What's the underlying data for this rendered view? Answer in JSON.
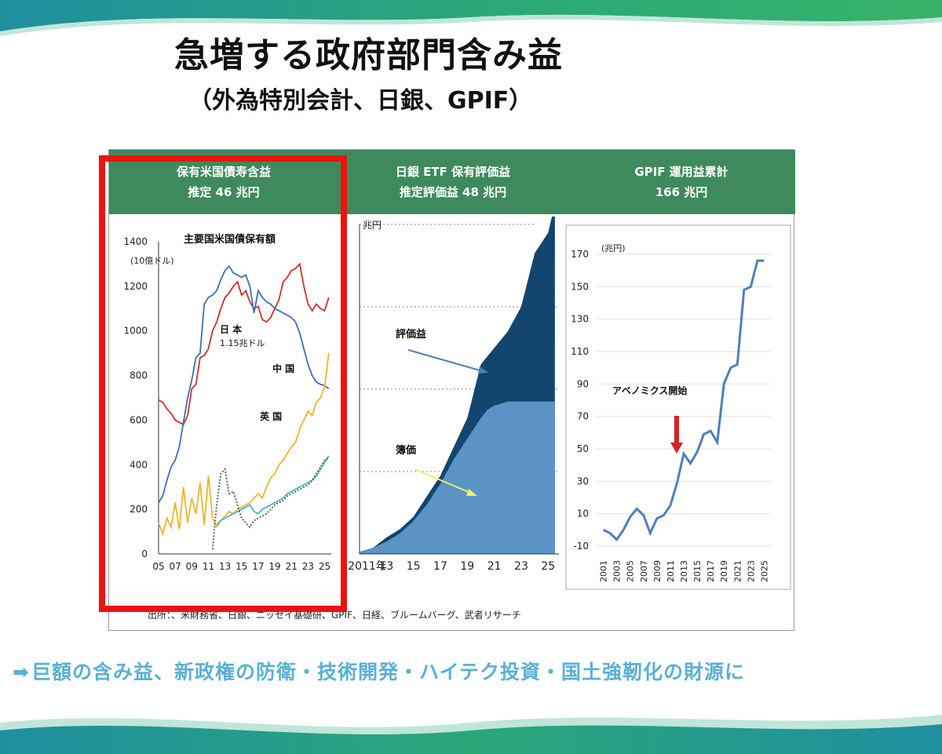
{
  "slide": {
    "title": "急増する政府部門含み益",
    "subtitle": "（外為特別会計、日銀、GPIF）",
    "source": "出所：、米財務省、日銀、ニッセイ基礎研、GPIF、日経、ブルームバーグ、武者リサーチ",
    "note_arrow": "➡",
    "note": "巨額の含み益、新政権の防衛・技術開発・ハイテク投資・国土強靭化の財源に",
    "colors": {
      "header_green": "#3f8a5c",
      "highlight_red": "#ee1111",
      "note_blue": "#5ab0d6",
      "wave_green": "#2aa779",
      "wave_teal": "#1f8fa0"
    }
  },
  "panels": [
    {
      "header_line1": "保有米国債寿含益",
      "header_line2": "推定 46 兆円"
    },
    {
      "header_line1": "日銀 ETF 保有評価益",
      "header_line2": "推定評価益 48 兆円"
    },
    {
      "header_line1": "GPIF 運用益累計",
      "header_line2": "166 兆円"
    }
  ],
  "chart_data": [
    {
      "type": "line",
      "title": "主要国米国債保有額",
      "ylabel": "(10億ドル)",
      "ylim": [
        0,
        1400
      ],
      "yticks": [
        0,
        200,
        400,
        600,
        800,
        1000,
        1200,
        1400
      ],
      "xlim": [
        2005,
        2025.8
      ],
      "xtick_labels": [
        "05",
        "07",
        "09",
        "11",
        "13",
        "15",
        "17",
        "19",
        "21",
        "23",
        "25"
      ],
      "annotations": [
        "日 本",
        "1.15兆ドル",
        "中 国",
        "英 国"
      ],
      "series": [
        {
          "name": "日 本",
          "color": "#d42f2f",
          "x": [
            2005,
            2005.5,
            2006,
            2006.5,
            2007,
            2007.5,
            2008,
            2008.5,
            2009,
            2009.5,
            2010,
            2010.5,
            2011,
            2011.5,
            2012,
            2012.5,
            2013,
            2013.5,
            2014,
            2014.5,
            2015,
            2015.5,
            2016,
            2016.5,
            2017,
            2017.5,
            2018,
            2018.5,
            2019,
            2019.5,
            2020,
            2020.5,
            2021,
            2021.5,
            2022,
            2022.5,
            2023,
            2023.5,
            2024,
            2024.5,
            2025,
            2025.5
          ],
          "y": [
            690,
            680,
            650,
            630,
            600,
            590,
            580,
            620,
            740,
            760,
            880,
            890,
            920,
            1000,
            1040,
            1100,
            1150,
            1170,
            1200,
            1220,
            1160,
            1180,
            1130,
            1100,
            1110,
            1050,
            1040,
            1060,
            1100,
            1140,
            1220,
            1240,
            1270,
            1280,
            1300,
            1200,
            1120,
            1090,
            1120,
            1100,
            1090,
            1150
          ]
        },
        {
          "name": "中 国",
          "color": "#3d6fb6",
          "x": [
            2005,
            2005.5,
            2006,
            2006.5,
            2007,
            2007.5,
            2008,
            2008.5,
            2009,
            2009.5,
            2010,
            2010.5,
            2011,
            2011.5,
            2012,
            2012.5,
            2013,
            2013.5,
            2014,
            2014.5,
            2015,
            2015.5,
            2016,
            2016.5,
            2017,
            2017.5,
            2018,
            2018.5,
            2019,
            2019.5,
            2020,
            2020.5,
            2021,
            2021.5,
            2022,
            2022.5,
            2023,
            2023.5,
            2024,
            2024.5,
            2025,
            2025.5
          ],
          "y": [
            230,
            260,
            330,
            390,
            420,
            480,
            590,
            700,
            780,
            880,
            900,
            1120,
            1150,
            1160,
            1180,
            1230,
            1270,
            1290,
            1260,
            1250,
            1240,
            1250,
            1200,
            1080,
            1180,
            1150,
            1130,
            1120,
            1100,
            1090,
            1080,
            1070,
            1060,
            1040,
            990,
            920,
            850,
            800,
            770,
            760,
            755,
            740
          ]
        },
        {
          "name": "英 国",
          "color": "#f0b42a",
          "x": [
            2005,
            2005.5,
            2006,
            2006.5,
            2007,
            2007.5,
            2008,
            2008.5,
            2009,
            2009.5,
            2010,
            2010.5,
            2011,
            2011.5,
            2012,
            2012.5,
            2013,
            2013.5,
            2014,
            2014.5,
            2015,
            2015.5,
            2016,
            2016.5,
            2017,
            2017.5,
            2018,
            2018.5,
            2019,
            2019.5,
            2020,
            2020.5,
            2021,
            2021.5,
            2022,
            2022.5,
            2023,
            2023.5,
            2024,
            2024.5,
            2025,
            2025.5
          ],
          "y": [
            140,
            90,
            160,
            120,
            230,
            110,
            300,
            140,
            250,
            180,
            320,
            130,
            350,
            160,
            120,
            150,
            170,
            190,
            180,
            200,
            210,
            220,
            230,
            250,
            270,
            250,
            300,
            340,
            360,
            400,
            420,
            450,
            480,
            500,
            560,
            600,
            640,
            620,
            680,
            700,
            750,
            900
          ]
        },
        {
          "name": "",
          "color": "#45b7c8",
          "x": [
            2012,
            2012.5,
            2013,
            2013.5,
            2014,
            2014.5,
            2015,
            2015.5,
            2016,
            2016.5,
            2017,
            2017.5,
            2018,
            2018.5,
            2019,
            2019.5,
            2020,
            2020.5,
            2021,
            2021.5,
            2022,
            2022.5,
            2023,
            2023.5,
            2024,
            2024.5,
            2025,
            2025.5
          ],
          "y": [
            130,
            150,
            160,
            170,
            180,
            190,
            200,
            210,
            220,
            190,
            180,
            200,
            210,
            220,
            230,
            240,
            250,
            270,
            280,
            290,
            300,
            310,
            320,
            330,
            350,
            380,
            410,
            440
          ]
        },
        {
          "name": "",
          "color": "#555555",
          "x": [
            2011.5,
            2012,
            2012.5,
            2013,
            2013.5,
            2014,
            2014.5,
            2015,
            2015.5,
            2016,
            2016.5,
            2017,
            2017.5,
            2018,
            2018.5,
            2019,
            2019.5,
            2020,
            2020.5,
            2021,
            2021.5,
            2022,
            2022.5,
            2023,
            2023.5,
            2024,
            2024.5,
            2025,
            2025.5
          ],
          "y": [
            20,
            220,
            360,
            380,
            270,
            280,
            220,
            160,
            140,
            120,
            150,
            160,
            170,
            180,
            200,
            220,
            230,
            240,
            260,
            270,
            280,
            290,
            300,
            310,
            330,
            360,
            390,
            420,
            430
          ]
        }
      ]
    },
    {
      "type": "area",
      "ytick_label": "兆円",
      "xtick_labels": [
        "2011年",
        "13",
        "15",
        "17",
        "19",
        "21",
        "23",
        "25"
      ],
      "xlim": [
        2011,
        2025.8
      ],
      "ylim": [
        0,
        80
      ],
      "annotations": [
        "評価益",
        "簿価"
      ],
      "series": [
        {
          "name": "簿価",
          "color": "#5b93c6",
          "x": [
            2011,
            2012,
            2013,
            2014,
            2015,
            2016,
            2017,
            2018,
            2019,
            2020,
            2020.5,
            2021,
            2022,
            2023,
            2024,
            2025,
            2025.5
          ],
          "y": [
            0.5,
            1.5,
            3,
            5,
            8,
            12,
            17,
            23,
            28,
            33,
            35,
            36,
            37,
            37,
            37,
            37,
            37
          ]
        },
        {
          "name": "評価益",
          "color": "#14456f",
          "x": [
            2011,
            2012,
            2013,
            2014,
            2015,
            2016,
            2017,
            2018,
            2019,
            2020,
            2020.5,
            2021,
            2022,
            2023,
            2024,
            2025,
            2025.5
          ],
          "y": [
            0.5,
            1.5,
            4,
            6,
            9,
            14,
            19,
            26,
            33,
            46,
            48,
            50,
            54,
            60,
            73,
            78,
            85
          ]
        }
      ]
    },
    {
      "type": "line",
      "ylabel": "(兆円)",
      "ylim": [
        -10,
        170
      ],
      "yticks": [
        -10,
        10,
        30,
        50,
        70,
        90,
        110,
        130,
        150,
        170
      ],
      "xtick_labels": [
        "2001",
        "2003",
        "2005",
        "2007",
        "2009",
        "2011",
        "2013",
        "2015",
        "2017",
        "2019",
        "2021",
        "2023",
        "2025"
      ],
      "annotation": "アベノミクス開始",
      "series": [
        {
          "name": "",
          "color": "#4f7fba",
          "x": [
            2001,
            2002,
            2003,
            2004,
            2005,
            2006,
            2007,
            2008,
            2009,
            2010,
            2011,
            2012,
            2013,
            2014,
            2015,
            2016,
            2017,
            2018,
            2019,
            2020,
            2021,
            2022,
            2023,
            2024,
            2025
          ],
          "y": [
            0,
            -2,
            -6,
            0,
            8,
            13,
            9,
            -2,
            7,
            9,
            15,
            29,
            47,
            41,
            48,
            59,
            61,
            54,
            90,
            100,
            102,
            148,
            150,
            166,
            166
          ]
        }
      ]
    }
  ]
}
